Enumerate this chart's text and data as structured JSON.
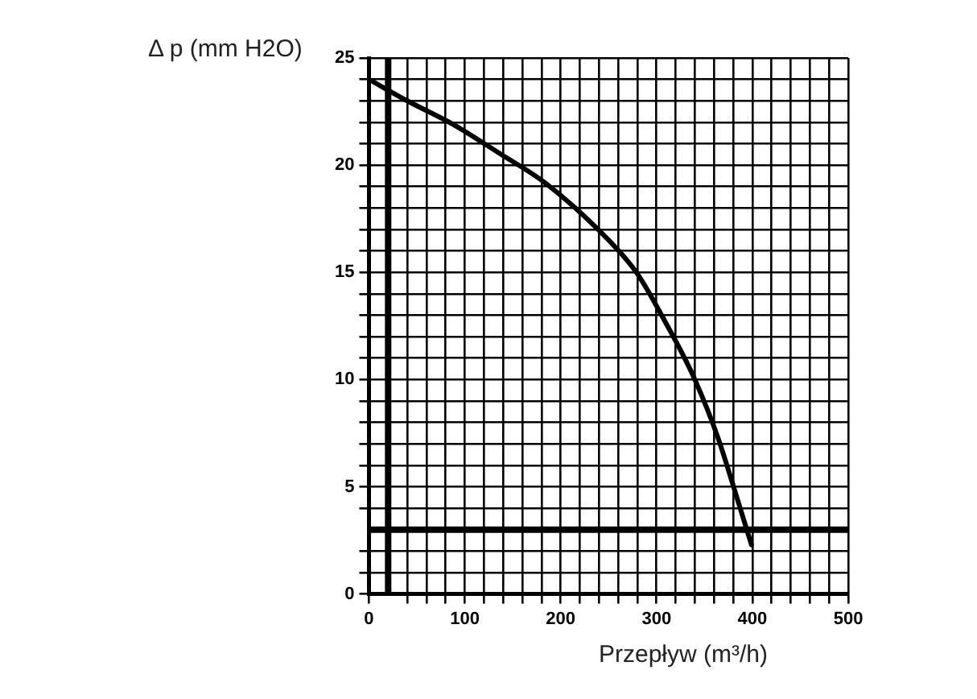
{
  "chart_data": {
    "type": "line",
    "xlabel": "Przepływ (m³/h)",
    "ylabel": "Δ p (mm H2O)",
    "xlim": [
      0,
      500
    ],
    "ylim": [
      0,
      25
    ],
    "xticks": [
      0,
      {
        "value": 40,
        "label": null
      },
      {
        "value": 60,
        "label": null
      },
      {
        "value": 80,
        "label": null
      },
      100,
      {
        "value": 120,
        "label": null
      },
      {
        "value": 140,
        "label": null
      },
      {
        "value": 160,
        "label": null
      },
      {
        "value": 180,
        "label": null
      },
      200,
      {
        "value": 220,
        "label": null
      },
      {
        "value": 240,
        "label": null
      },
      {
        "value": 260,
        "label": null
      },
      {
        "value": 280,
        "label": null
      },
      300,
      {
        "value": 320,
        "label": null
      },
      {
        "value": 340,
        "label": null
      },
      {
        "value": 360,
        "label": null
      },
      {
        "value": 380,
        "label": null
      },
      400,
      {
        "value": 420,
        "label": null
      },
      {
        "value": 440,
        "label": null
      },
      {
        "value": 460,
        "label": null
      },
      {
        "value": 480,
        "label": null
      },
      500
    ],
    "yticks": [
      0,
      {
        "value": 1,
        "label": null
      },
      {
        "value": 2,
        "label": null
      },
      {
        "value": 4,
        "label": null
      },
      5,
      {
        "value": 6,
        "label": null
      },
      {
        "value": 7,
        "label": null
      },
      {
        "value": 8,
        "label": null
      },
      {
        "value": 9,
        "label": null
      },
      10,
      {
        "value": 11,
        "label": null
      },
      {
        "value": 12,
        "label": null
      },
      {
        "value": 13,
        "label": null
      },
      {
        "value": 14,
        "label": null
      },
      15,
      {
        "value": 16,
        "label": null
      },
      {
        "value": 17,
        "label": null
      },
      {
        "value": 18,
        "label": null
      },
      {
        "value": 19,
        "label": null
      },
      20,
      {
        "value": 21,
        "label": null
      },
      {
        "value": 22,
        "label": null
      },
      {
        "value": 23,
        "label": null
      },
      {
        "value": 24,
        "label": null
      },
      25
    ],
    "grid": true,
    "marker": "none",
    "line_style": "solid",
    "series": [
      {
        "color": "#000000",
        "x": [
          0,
          40,
          88,
          138,
          183,
          239,
          279,
          309,
          339,
          364,
          379,
          399
        ],
        "values": [
          24,
          23,
          21.9,
          20.5,
          19.2,
          17,
          15,
          12.7,
          10.1,
          7.3,
          5.2,
          2.3
        ]
      }
    ],
    "ref_lines": [
      {
        "axis": "x",
        "value": 20,
        "color": "#000000"
      },
      {
        "axis": "y",
        "value": 3,
        "color": "#000000"
      }
    ]
  }
}
